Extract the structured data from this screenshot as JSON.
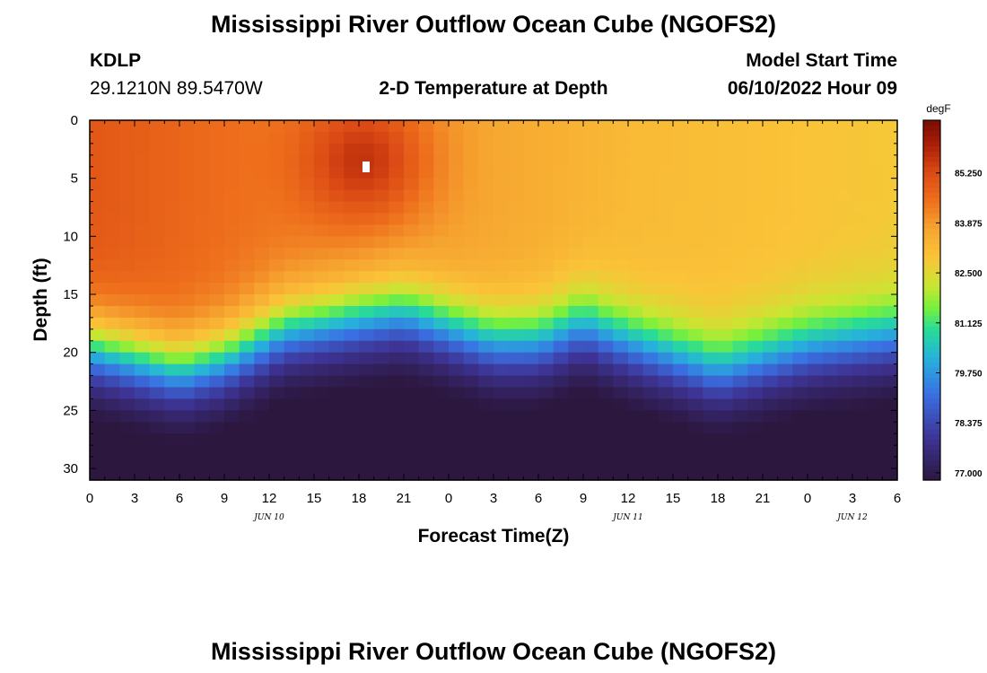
{
  "chart_data": {
    "type": "heatmap",
    "title": "Mississippi River Outflow Ocean Cube (NGOFS2)",
    "subtitle": "2-D Temperature at Depth",
    "station": {
      "id": "KDLP",
      "coords": "29.1210N  89.5470W"
    },
    "model_start": {
      "label": "Model Start Time",
      "value": "06/10/2022 Hour 09"
    },
    "xlabel": "Forecast Time(Z)",
    "ylabel": "Depth (ft)",
    "x_range_hours": [
      0,
      54
    ],
    "x_ticks": [
      {
        "h": 0,
        "label": "0"
      },
      {
        "h": 3,
        "label": "3"
      },
      {
        "h": 6,
        "label": "6"
      },
      {
        "h": 9,
        "label": "9"
      },
      {
        "h": 12,
        "label": "12"
      },
      {
        "h": 15,
        "label": "15"
      },
      {
        "h": 18,
        "label": "18"
      },
      {
        "h": 21,
        "label": "21"
      },
      {
        "h": 24,
        "label": "0"
      },
      {
        "h": 27,
        "label": "3"
      },
      {
        "h": 30,
        "label": "6"
      },
      {
        "h": 33,
        "label": "9"
      },
      {
        "h": 36,
        "label": "12"
      },
      {
        "h": 39,
        "label": "15"
      },
      {
        "h": 42,
        "label": "18"
      },
      {
        "h": 45,
        "label": "21"
      },
      {
        "h": 48,
        "label": "0"
      },
      {
        "h": 51,
        "label": "3"
      },
      {
        "h": 54,
        "label": "6"
      }
    ],
    "date_labels": [
      {
        "h": 12,
        "label": "JUN 10"
      },
      {
        "h": 36,
        "label": "JUN 11"
      },
      {
        "h": 51,
        "label": "JUN 12"
      }
    ],
    "y_range": [
      0,
      31
    ],
    "y_ticks": [
      0,
      5,
      10,
      15,
      20,
      25,
      30
    ],
    "colorbar": {
      "unit": "degF",
      "min": 76.8,
      "max": 86.7,
      "ticks": [
        "85.250",
        "83.875",
        "82.500",
        "81.125",
        "79.750",
        "78.375",
        "77.000"
      ],
      "tick_values": [
        85.25,
        83.875,
        82.5,
        81.125,
        79.75,
        78.375,
        77.0
      ]
    },
    "field": {
      "description": "estimated temperature (degF) vs forecast hour and depth (ft)",
      "columns": 54,
      "rows": 31,
      "warm_core": {
        "hour": 18.5,
        "depth": 3.5,
        "value": 86.6
      },
      "thermocline_depth_by_hour": [
        [
          0,
          19.5
        ],
        [
          6,
          21.5
        ],
        [
          9,
          20.5
        ],
        [
          13,
          18
        ],
        [
          18,
          17
        ],
        [
          21,
          16.5
        ],
        [
          27,
          19
        ],
        [
          30,
          19
        ],
        [
          33,
          17.5
        ],
        [
          36,
          19
        ],
        [
          42,
          21.5
        ],
        [
          48,
          19.5
        ],
        [
          54,
          18.5
        ]
      ]
    }
  }
}
